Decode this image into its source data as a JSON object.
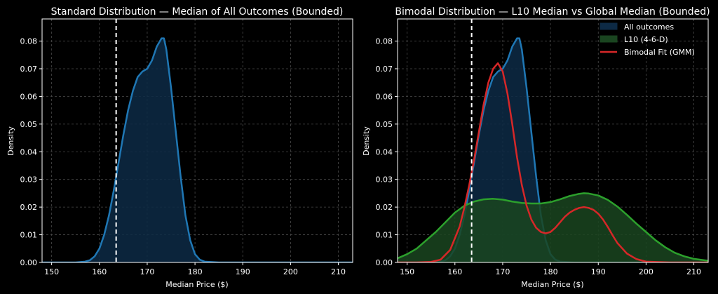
{
  "chart_data": [
    {
      "type": "area",
      "title": "Standard Distribution — Median of All Outcomes (Bounded)",
      "xlabel": "Median Price ($)",
      "ylabel": "Density",
      "xlim": [
        148,
        213
      ],
      "ylim": [
        0,
        0.088
      ],
      "xticks": [
        150,
        160,
        170,
        180,
        190,
        200,
        210
      ],
      "yticks": [
        0.0,
        0.01,
        0.02,
        0.03,
        0.04,
        0.05,
        0.06,
        0.07,
        0.08
      ],
      "grid": true,
      "legend": null,
      "reference_line": {
        "x": 163.5,
        "style": "dashed",
        "color": "#ffffff"
      },
      "series": [
        {
          "color": "#1f77b4",
          "fill": "#0d2a45",
          "x": [
            148,
            152,
            155,
            157,
            158,
            159,
            160,
            161,
            162,
            163,
            164,
            165,
            166,
            167,
            168,
            169,
            170,
            171,
            172,
            173,
            173.5,
            174,
            175,
            176,
            177,
            178,
            179,
            180,
            181,
            182,
            185,
            190,
            200,
            213
          ],
          "y": [
            0,
            0,
            0,
            0.0003,
            0.0008,
            0.0022,
            0.005,
            0.01,
            0.017,
            0.026,
            0.036,
            0.046,
            0.055,
            0.062,
            0.067,
            0.069,
            0.07,
            0.073,
            0.078,
            0.081,
            0.081,
            0.077,
            0.063,
            0.047,
            0.031,
            0.017,
            0.008,
            0.003,
            0.001,
            0.0003,
            0,
            0,
            0,
            0
          ]
        }
      ]
    },
    {
      "type": "area",
      "title": "Bimodal Distribution — L10 Median vs Global Median (Bounded)",
      "xlabel": "Median Price ($)",
      "ylabel": "Density",
      "xlim": [
        148,
        213
      ],
      "ylim": [
        0,
        0.088
      ],
      "xticks": [
        150,
        160,
        170,
        180,
        190,
        200,
        210
      ],
      "yticks": [
        0.0,
        0.01,
        0.02,
        0.03,
        0.04,
        0.05,
        0.06,
        0.07,
        0.08
      ],
      "grid": true,
      "legend": "top-right",
      "reference_line": {
        "x": 163.5,
        "style": "dashed",
        "color": "#ffffff"
      },
      "series": [
        {
          "name": "All outcomes",
          "color": "#1f77b4",
          "fill": "#0d2a45",
          "x": [
            148,
            152,
            155,
            157,
            158,
            159,
            160,
            161,
            162,
            163,
            164,
            165,
            166,
            167,
            168,
            169,
            170,
            171,
            172,
            173,
            173.5,
            174,
            175,
            176,
            177,
            178,
            179,
            180,
            181,
            182,
            185,
            190,
            200,
            213
          ],
          "y": [
            0,
            0,
            0,
            0.0003,
            0.0008,
            0.0022,
            0.005,
            0.01,
            0.017,
            0.026,
            0.036,
            0.046,
            0.055,
            0.062,
            0.067,
            0.069,
            0.07,
            0.073,
            0.078,
            0.081,
            0.081,
            0.077,
            0.063,
            0.047,
            0.031,
            0.017,
            0.008,
            0.003,
            0.001,
            0.0003,
            0,
            0,
            0,
            0
          ]
        },
        {
          "name": "L10 (4-6-D)",
          "color": "#2ca02c",
          "fill": "#1a4520",
          "x": [
            148,
            150,
            152,
            154,
            156,
            158,
            160,
            162,
            164,
            166,
            168,
            170,
            172,
            174,
            176,
            178,
            180,
            182,
            184,
            186,
            187,
            188,
            190,
            192,
            194,
            196,
            198,
            200,
            202,
            204,
            206,
            208,
            210,
            213
          ],
          "y": [
            0.0015,
            0.003,
            0.005,
            0.008,
            0.011,
            0.0145,
            0.018,
            0.0205,
            0.022,
            0.0228,
            0.023,
            0.0227,
            0.022,
            0.0215,
            0.0213,
            0.0213,
            0.0218,
            0.0228,
            0.024,
            0.0248,
            0.025,
            0.0249,
            0.0242,
            0.0226,
            0.0202,
            0.0172,
            0.014,
            0.011,
            0.008,
            0.0055,
            0.0035,
            0.0022,
            0.0013,
            0.0006
          ]
        },
        {
          "name": "Bimodal Fit (GMM)",
          "color": "#d62728",
          "fill": null,
          "x": [
            148,
            152,
            155,
            157,
            159,
            161,
            162,
            163,
            164,
            165,
            166,
            167,
            168,
            169,
            170,
            171,
            172,
            173,
            174,
            175,
            176,
            177,
            178,
            179,
            180,
            181,
            182,
            183,
            184,
            185,
            186,
            187,
            188,
            189,
            190,
            191,
            192,
            193,
            194,
            196,
            198,
            200,
            205,
            213
          ],
          "y": [
            0,
            0,
            0.0002,
            0.001,
            0.0045,
            0.013,
            0.02,
            0.028,
            0.037,
            0.047,
            0.057,
            0.065,
            0.07,
            0.072,
            0.069,
            0.061,
            0.05,
            0.038,
            0.028,
            0.0205,
            0.0155,
            0.0125,
            0.011,
            0.0105,
            0.011,
            0.0125,
            0.0145,
            0.0165,
            0.018,
            0.019,
            0.0197,
            0.02,
            0.0197,
            0.019,
            0.0176,
            0.0155,
            0.0128,
            0.0098,
            0.007,
            0.0032,
            0.0012,
            0.0003,
            0,
            0
          ]
        }
      ]
    }
  ]
}
